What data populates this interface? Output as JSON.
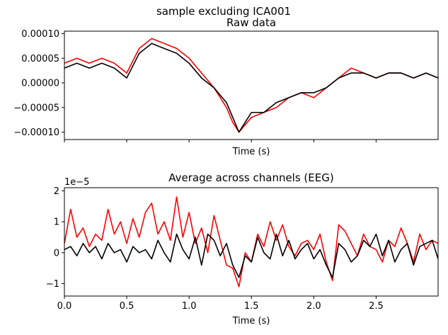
{
  "figure": {
    "suptitle": "sample excluding ICA001"
  },
  "colors": {
    "raw": "#ff0000",
    "cleaned": "#000000",
    "frame": "#000000"
  },
  "chart_data": [
    {
      "type": "line",
      "title": "Raw data",
      "xlabel": "Time (s)",
      "ylabel": "",
      "xlim": [
        0.0,
        2.997
      ],
      "ylim": [
        -0.000115,
        0.000105
      ],
      "yticks": [
        -0.0001,
        -5e-05,
        0.0,
        5e-05,
        0.0001
      ],
      "ytick_labels": [
        "−0.00010",
        "−0.00005",
        "0.00000",
        "0.00005",
        "0.00010"
      ],
      "xticks": [
        0.0,
        0.5,
        1.0,
        1.5,
        2.0,
        2.5
      ],
      "xtick_labels": [],
      "grid": false,
      "series": [
        {
          "color": "#ff0000",
          "note_values": "multichannel EEG traces (before ICA exclusion); representative envelope",
          "x": [
            0.0,
            0.1,
            0.2,
            0.3,
            0.4,
            0.5,
            0.6,
            0.65,
            0.7,
            0.8,
            0.9,
            1.0,
            1.1,
            1.2,
            1.3,
            1.35,
            1.4,
            1.5,
            1.6,
            1.7,
            1.8,
            1.9,
            2.0,
            2.1,
            2.2,
            2.3,
            2.4,
            2.5,
            2.6,
            2.7,
            2.8,
            2.9,
            2.997
          ],
          "values": [
            4e-05,
            5e-05,
            4e-05,
            5e-05,
            4e-05,
            2e-05,
            7e-05,
            8e-05,
            9e-05,
            8e-05,
            7e-05,
            5e-05,
            2e-05,
            -1e-05,
            -5e-05,
            -8e-05,
            -0.0001,
            -7e-05,
            -6e-05,
            -5e-05,
            -3e-05,
            -2e-05,
            -3e-05,
            -1e-05,
            1e-05,
            3e-05,
            2e-05,
            1e-05,
            2e-05,
            2e-05,
            1e-05,
            2e-05,
            1e-05
          ]
        },
        {
          "color": "#000000",
          "note_values": "multichannel EEG traces (after ICA001 exclusion); representative envelope",
          "x": [
            0.0,
            0.1,
            0.2,
            0.3,
            0.4,
            0.5,
            0.6,
            0.65,
            0.7,
            0.8,
            0.9,
            1.0,
            1.1,
            1.2,
            1.3,
            1.35,
            1.4,
            1.5,
            1.6,
            1.7,
            1.8,
            1.9,
            2.0,
            2.1,
            2.2,
            2.3,
            2.4,
            2.5,
            2.6,
            2.7,
            2.8,
            2.9,
            2.997
          ],
          "values": [
            3e-05,
            4e-05,
            3e-05,
            4e-05,
            3e-05,
            1e-05,
            6e-05,
            7e-05,
            8e-05,
            7e-05,
            6e-05,
            4e-05,
            1e-05,
            -1e-05,
            -4e-05,
            -7e-05,
            -0.0001,
            -6e-05,
            -6e-05,
            -4e-05,
            -3e-05,
            -2e-05,
            -2e-05,
            -1e-05,
            1e-05,
            2e-05,
            2e-05,
            1e-05,
            2e-05,
            2e-05,
            1e-05,
            2e-05,
            1e-05
          ]
        }
      ]
    },
    {
      "type": "line",
      "title": "Average across channels (EEG)",
      "xlabel": "Time (s)",
      "ylabel": "",
      "offset_text": "1e−5",
      "xlim": [
        0.0,
        2.997
      ],
      "ylim": [
        -1.4,
        2.1
      ],
      "yticks": [
        -1,
        0,
        1,
        2
      ],
      "ytick_labels": [
        "−1",
        "0",
        "1",
        "2"
      ],
      "xticks": [
        0.0,
        0.5,
        1.0,
        1.5,
        2.0,
        2.5
      ],
      "xtick_labels": [
        "0.0",
        "0.5",
        "1.0",
        "1.5",
        "2.0",
        "2.5"
      ],
      "grid": false,
      "series": [
        {
          "color": "#ff0000",
          "x": [
            0.0,
            0.05,
            0.1,
            0.15,
            0.2,
            0.25,
            0.3,
            0.35,
            0.4,
            0.45,
            0.5,
            0.55,
            0.6,
            0.65,
            0.7,
            0.75,
            0.8,
            0.85,
            0.9,
            0.95,
            1.0,
            1.05,
            1.1,
            1.15,
            1.2,
            1.25,
            1.3,
            1.35,
            1.4,
            1.45,
            1.5,
            1.55,
            1.6,
            1.65,
            1.7,
            1.75,
            1.8,
            1.85,
            1.9,
            1.95,
            2.0,
            2.05,
            2.1,
            2.15,
            2.2,
            2.25,
            2.3,
            2.35,
            2.4,
            2.45,
            2.5,
            2.55,
            2.6,
            2.65,
            2.7,
            2.75,
            2.8,
            2.85,
            2.9,
            2.95,
            2.997
          ],
          "values": [
            0.3,
            1.4,
            0.5,
            0.8,
            0.2,
            0.6,
            0.4,
            1.4,
            0.6,
            1.0,
            0.3,
            1.1,
            0.5,
            1.3,
            1.6,
            0.6,
            1.0,
            0.4,
            1.8,
            0.5,
            1.3,
            0.3,
            0.8,
            0.0,
            1.2,
            0.4,
            -0.4,
            -0.5,
            -1.1,
            0.0,
            -0.3,
            0.6,
            0.2,
            1.0,
            0.4,
            0.9,
            0.2,
            -0.1,
            0.3,
            0.4,
            0.1,
            0.6,
            -0.3,
            -0.9,
            0.9,
            0.7,
            0.3,
            -0.1,
            0.6,
            0.2,
            0.1,
            -0.3,
            0.4,
            0.2,
            0.8,
            0.3,
            -0.3,
            0.6,
            0.1,
            0.4,
            0.3
          ]
        },
        {
          "color": "#000000",
          "x": [
            0.0,
            0.05,
            0.1,
            0.15,
            0.2,
            0.25,
            0.3,
            0.35,
            0.4,
            0.45,
            0.5,
            0.55,
            0.6,
            0.65,
            0.7,
            0.75,
            0.8,
            0.85,
            0.9,
            0.95,
            1.0,
            1.05,
            1.1,
            1.15,
            1.2,
            1.25,
            1.3,
            1.35,
            1.4,
            1.45,
            1.5,
            1.55,
            1.6,
            1.65,
            1.7,
            1.75,
            1.8,
            1.85,
            1.9,
            1.95,
            2.0,
            2.05,
            2.1,
            2.15,
            2.2,
            2.25,
            2.3,
            2.35,
            2.4,
            2.45,
            2.5,
            2.55,
            2.6,
            2.65,
            2.7,
            2.75,
            2.8,
            2.85,
            2.9,
            2.95,
            2.997
          ],
          "values": [
            0.1,
            0.2,
            -0.1,
            0.3,
            0.0,
            0.2,
            -0.2,
            0.3,
            0.0,
            0.1,
            -0.3,
            0.2,
            0.0,
            0.1,
            -0.2,
            0.4,
            0.0,
            -0.3,
            0.6,
            0.1,
            -0.2,
            0.5,
            -0.4,
            0.6,
            0.4,
            -0.1,
            0.3,
            -0.4,
            -0.8,
            -0.1,
            -0.3,
            0.5,
            0.0,
            -0.2,
            0.6,
            -0.1,
            0.4,
            -0.2,
            0.1,
            0.3,
            -0.2,
            0.1,
            -0.4,
            -0.8,
            0.3,
            0.1,
            -0.3,
            -0.1,
            0.4,
            0.2,
            0.6,
            -0.1,
            0.4,
            -0.3,
            0.1,
            0.3,
            -0.4,
            0.2,
            0.3,
            0.4,
            -0.2
          ]
        }
      ]
    }
  ]
}
